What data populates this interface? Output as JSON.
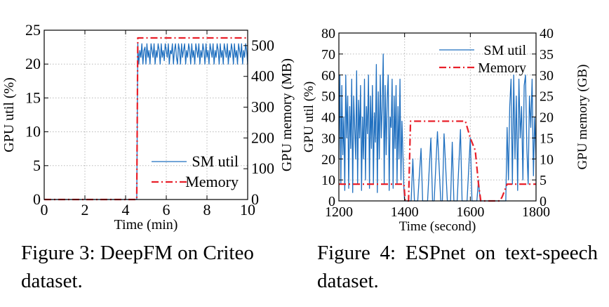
{
  "chart_data": [
    {
      "type": "line",
      "id": "fig3",
      "xlabel": "Time (min)",
      "ylabel_left": "GPU util (%)",
      "ylabel_right": "GPU memory (MB)",
      "xlim": [
        0,
        10
      ],
      "ylim_left": [
        0,
        25
      ],
      "ylim_right": [
        0,
        550
      ],
      "xticks": [
        0,
        2,
        4,
        6,
        8,
        10
      ],
      "yticks_left": [
        0,
        5,
        10,
        15,
        20,
        25
      ],
      "yticks_right": [
        0,
        100,
        200,
        300,
        400,
        500
      ],
      "grid": true,
      "legend_position": "bottom-right",
      "series": [
        {
          "name": "SM util",
          "axis": "left",
          "color": "#1f6fbf",
          "style": "solid",
          "x": [
            0,
            4.55,
            4.6,
            4.65,
            4.7,
            4.75,
            4.8,
            4.85,
            4.9,
            4.95,
            5.0,
            5.05,
            5.1,
            5.15,
            5.2,
            5.25,
            5.3,
            5.35,
            5.4,
            5.45,
            5.5,
            5.55,
            5.6,
            5.65,
            5.7,
            5.75,
            5.8,
            5.85,
            5.9,
            5.95,
            6.0,
            6.05,
            6.1,
            6.15,
            6.2,
            6.25,
            6.3,
            6.35,
            6.4,
            6.45,
            6.5,
            6.55,
            6.6,
            6.65,
            6.7,
            6.75,
            6.8,
            6.85,
            6.9,
            6.95,
            7.0,
            7.05,
            7.1,
            7.15,
            7.2,
            7.25,
            7.3,
            7.35,
            7.4,
            7.45,
            7.5,
            7.55,
            7.6,
            7.65,
            7.7,
            7.75,
            7.8,
            7.85,
            7.9,
            7.95,
            8.0,
            8.05,
            8.1,
            8.15,
            8.2,
            8.25,
            8.3,
            8.35,
            8.4,
            8.45,
            8.5,
            8.55,
            8.6,
            8.65,
            8.7,
            8.75,
            8.8,
            8.85,
            8.9,
            8.95,
            9.0,
            9.05,
            9.1,
            9.15,
            9.2,
            9.25,
            9.3,
            9.35,
            9.4,
            9.45,
            9.5,
            9.55,
            9.6,
            9.65,
            9.7,
            9.75,
            9.8,
            9.85,
            9.9,
            9.95,
            10.0
          ],
          "y": [
            0,
            0,
            23,
            20,
            22,
            21,
            23,
            20,
            22,
            22.5,
            20,
            23,
            21,
            22,
            20,
            23,
            22,
            21,
            23,
            20,
            22,
            21,
            23,
            22,
            20,
            23,
            21,
            22,
            20.5,
            23,
            22,
            21,
            23,
            20,
            22,
            21.5,
            23,
            20,
            22,
            23,
            21,
            20,
            23,
            22,
            20,
            23,
            21,
            22,
            23,
            20,
            22,
            21,
            23,
            22,
            20,
            23,
            21,
            22,
            20,
            23,
            22,
            21,
            23,
            20,
            22,
            21,
            23,
            22,
            20,
            23,
            21,
            22,
            20,
            23,
            22,
            21,
            23,
            20,
            22,
            21,
            23,
            22,
            20,
            23,
            21,
            22,
            20,
            23,
            22,
            21,
            23,
            20,
            22,
            21,
            23,
            22,
            20,
            23,
            21,
            22,
            20,
            23,
            22,
            21,
            23,
            20,
            22,
            21,
            23,
            22,
            20
          ]
        },
        {
          "name": "Memory",
          "axis": "right",
          "color": "#e8202a",
          "style": "dashdot",
          "x": [
            0,
            4.55,
            4.6,
            10
          ],
          "y": [
            0,
            0,
            525,
            525
          ]
        }
      ]
    },
    {
      "type": "line",
      "id": "fig4",
      "xlabel": "Time (second)",
      "ylabel_left": "GPU util (%)",
      "ylabel_right": "GPU memory (GB)",
      "xlim": [
        1200,
        1800
      ],
      "ylim_left": [
        0,
        80
      ],
      "ylim_right": [
        0,
        40
      ],
      "xticks": [
        1200,
        1400,
        1600,
        1800
      ],
      "yticks_left": [
        0,
        10,
        20,
        30,
        40,
        50,
        60,
        70,
        80
      ],
      "yticks_right": [
        0,
        5,
        10,
        15,
        20,
        25,
        30,
        35,
        40
      ],
      "grid": true,
      "legend_position": "top-right",
      "series": [
        {
          "name": "SM util",
          "axis": "left",
          "color": "#1f6fbf",
          "style": "solid",
          "x": [
            1200,
            1203,
            1206,
            1209,
            1212,
            1215,
            1218,
            1221,
            1224,
            1227,
            1230,
            1233,
            1236,
            1239,
            1242,
            1245,
            1248,
            1251,
            1254,
            1257,
            1260,
            1263,
            1266,
            1269,
            1272,
            1275,
            1278,
            1281,
            1284,
            1287,
            1290,
            1293,
            1296,
            1299,
            1302,
            1305,
            1308,
            1311,
            1314,
            1317,
            1320,
            1323,
            1326,
            1329,
            1332,
            1335,
            1338,
            1341,
            1344,
            1347,
            1350,
            1353,
            1356,
            1359,
            1362,
            1365,
            1368,
            1371,
            1374,
            1377,
            1380,
            1383,
            1386,
            1389,
            1392,
            1395,
            1398,
            1400,
            1410,
            1420,
            1425,
            1430,
            1440,
            1450,
            1455,
            1460,
            1470,
            1480,
            1485,
            1490,
            1500,
            1510,
            1515,
            1520,
            1530,
            1540,
            1545,
            1550,
            1560,
            1570,
            1575,
            1580,
            1590,
            1600,
            1605,
            1610,
            1620,
            1625,
            1630,
            1700,
            1704,
            1708,
            1712,
            1716,
            1720,
            1724,
            1728,
            1732,
            1736,
            1740,
            1744,
            1748,
            1752,
            1756,
            1760,
            1764,
            1768,
            1772,
            1776,
            1780,
            1784,
            1788,
            1792,
            1796,
            1800
          ],
          "y": [
            20,
            60,
            8,
            55,
            22,
            40,
            5,
            60,
            30,
            50,
            6,
            45,
            25,
            58,
            4,
            50,
            35,
            20,
            62,
            8,
            48,
            30,
            55,
            5,
            40,
            20,
            58,
            10,
            45,
            32,
            60,
            6,
            50,
            25,
            55,
            8,
            42,
            28,
            65,
            4,
            52,
            20,
            60,
            30,
            45,
            70,
            8,
            55,
            22,
            48,
            60,
            5,
            40,
            35,
            58,
            6,
            50,
            25,
            55,
            8,
            45,
            20,
            58,
            10,
            38,
            22,
            5,
            0,
            0,
            0,
            20,
            0,
            0,
            25,
            0,
            0,
            0,
            30,
            0,
            0,
            33,
            0,
            0,
            32,
            0,
            0,
            28,
            0,
            0,
            34,
            0,
            0,
            0,
            30,
            0,
            0,
            0,
            10,
            0,
            0,
            0,
            0,
            35,
            10,
            45,
            58,
            8,
            60,
            20,
            50,
            5,
            58,
            30,
            45,
            10,
            55,
            60,
            25,
            8,
            50,
            35,
            58,
            12,
            40,
            20
          ],
          "note_x_range": [
            1200,
            1800
          ]
        },
        {
          "name": "Memory",
          "axis": "right",
          "color": "#e8202a",
          "style": "dashdot",
          "x": [
            1200,
            1398,
            1402,
            1412,
            1418,
            1585,
            1600,
            1615,
            1625,
            1632,
            1690,
            1697,
            1712,
            1800
          ],
          "y": [
            4,
            4,
            0,
            0,
            19,
            19,
            15,
            12,
            4,
            0,
            0,
            1,
            4,
            4
          ]
        }
      ]
    }
  ],
  "captions": {
    "fig3": "Figure 3: DeepFM on Criteo dataset.",
    "fig4": "Figure 4: ESPnet on text-speech dataset."
  }
}
